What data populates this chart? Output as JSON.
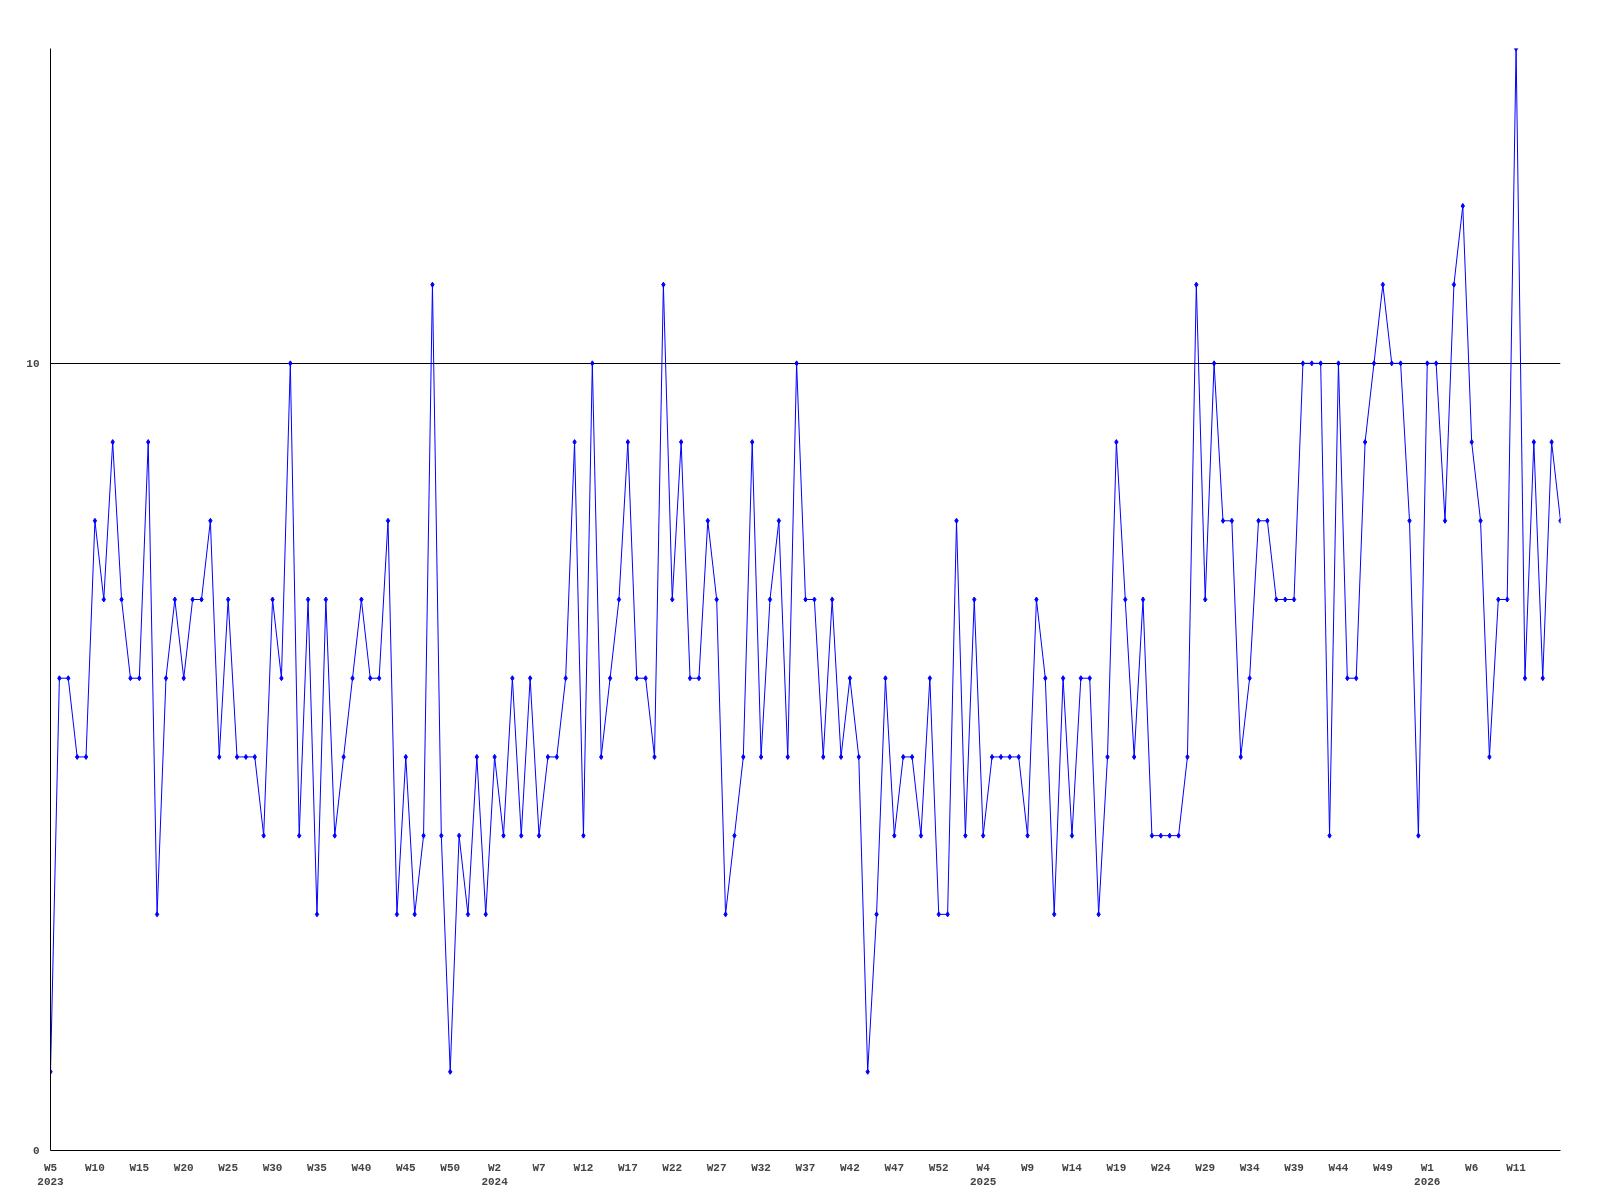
{
  "chart_data": {
    "type": "line",
    "categories": [
      "W5\n2023",
      null,
      null,
      null,
      null,
      "W10",
      null,
      null,
      null,
      null,
      "W15",
      null,
      null,
      null,
      null,
      "W20",
      null,
      null,
      null,
      null,
      "W25",
      null,
      null,
      null,
      null,
      "W30",
      null,
      null,
      null,
      null,
      "W35",
      null,
      null,
      null,
      null,
      "W40",
      null,
      null,
      null,
      null,
      "W45",
      null,
      null,
      null,
      null,
      "W50",
      null,
      null,
      null,
      null,
      "W2\n2024",
      null,
      null,
      null,
      null,
      "W7",
      null,
      null,
      null,
      null,
      "W12",
      null,
      null,
      null,
      null,
      "W17",
      null,
      null,
      null,
      null,
      "W22",
      null,
      null,
      null,
      null,
      "W27",
      null,
      null,
      null,
      null,
      "W32",
      null,
      null,
      null,
      null,
      "W37",
      null,
      null,
      null,
      null,
      "W42",
      null,
      null,
      null,
      null,
      "W47",
      null,
      null,
      null,
      null,
      "W52",
      null,
      null,
      null,
      null,
      "W4\n2025",
      null,
      null,
      null,
      null,
      "W9",
      null,
      null,
      null,
      null,
      "W14",
      null,
      null,
      null,
      null,
      "W19",
      null,
      null,
      null,
      null,
      "W24",
      null,
      null,
      null,
      null,
      "W29",
      null,
      null,
      null,
      null,
      "W34",
      null,
      null,
      null,
      null,
      "W39",
      null,
      null,
      null,
      null,
      "W44",
      null,
      null,
      null,
      null,
      "W49",
      null,
      null,
      null,
      null,
      "W1\n2026",
      null,
      null,
      null,
      null,
      "W6",
      null,
      null,
      null,
      null,
      "W11",
      null,
      null,
      null,
      null,
      null
    ],
    "series": [
      {
        "color": "#0000ff",
        "values": [
          1,
          6,
          6,
          5,
          5,
          8,
          7,
          9,
          7,
          6,
          6,
          9,
          3,
          6,
          7,
          6,
          7,
          7,
          8,
          5,
          7,
          5,
          5,
          5,
          4,
          7,
          6,
          10,
          4,
          7,
          3,
          7,
          4,
          5,
          6,
          7,
          6,
          6,
          8,
          3,
          5,
          3,
          4,
          11,
          4,
          1,
          4,
          3,
          5,
          3,
          5,
          4,
          6,
          4,
          6,
          4,
          5,
          5,
          6,
          9,
          4,
          10,
          5,
          6,
          7,
          9,
          6,
          6,
          5,
          11,
          7,
          9,
          6,
          6,
          8,
          7,
          3,
          4,
          5,
          9,
          5,
          7,
          8,
          5,
          10,
          7,
          7,
          5,
          7,
          5,
          6,
          5,
          1,
          3,
          6,
          4,
          5,
          5,
          4,
          6,
          3,
          3,
          8,
          4,
          7,
          4,
          5,
          5,
          5,
          5,
          4,
          7,
          6,
          3,
          6,
          4,
          6,
          6,
          3,
          5,
          9,
          7,
          5,
          7,
          4,
          4,
          4,
          4,
          5,
          11,
          7,
          10,
          8,
          8,
          5,
          6,
          8,
          8,
          7,
          7,
          7,
          10,
          10,
          10,
          4,
          10,
          6,
          6,
          9,
          10,
          11,
          10,
          10,
          8,
          4,
          10,
          10,
          8,
          11,
          12,
          9,
          8,
          5,
          7,
          7,
          14,
          6,
          9,
          6,
          9,
          8
        ]
      }
    ],
    "ylim": [
      0,
      14
    ],
    "yticks": [
      0,
      10
    ],
    "grid": "y",
    "marker": "diamond",
    "line_style": "solid"
  }
}
